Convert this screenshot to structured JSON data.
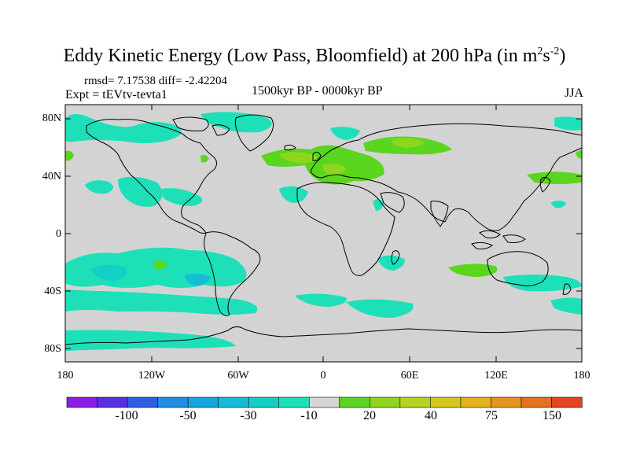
{
  "title": "Eddy Kinetic Energy (Low Pass, Bloomfield) at 200 hPa (in m",
  "title_unit_sup1": "2",
  "title_unit_s": "s",
  "title_unit_sup2": "-2",
  "title_close": ")",
  "stats_line": "rmsd= 7.17538 diff= -2.42204",
  "expt_line": "Expt = tEVtv-tevta1",
  "period_line": "1500kyr BP - 0000kyr BP",
  "season": "JJA",
  "lat_labels": [
    "80N",
    "40N",
    "0",
    "40S",
    "80S"
  ],
  "lon_labels": [
    "180",
    "120W",
    "60W",
    "0",
    "60E",
    "120E",
    "180"
  ],
  "colorbar": {
    "colors": [
      "#8a1ee6",
      "#5a2ee6",
      "#2e5ee6",
      "#1e8ee6",
      "#14a6e0",
      "#14bcd6",
      "#14cfc6",
      "#1ee0b8",
      "#d6d6d6",
      "#5ad61e",
      "#8ed61e",
      "#b4d41e",
      "#d6c81e",
      "#e6b21e",
      "#e6941e",
      "#e6701e",
      "#e6441e"
    ],
    "labels": [
      "-100",
      "-50",
      "-30",
      "-10",
      "20",
      "40",
      "75",
      "150"
    ]
  },
  "fill_colors": {
    "ocean_gray": "#d3d3d3",
    "neg_teal": "#1ee0b8",
    "neg_cyan": "#14cfc6",
    "neg_blue": "#14bcd6",
    "pos_green": "#5ad61e",
    "pos_yellowgreen": "#8ed61e"
  }
}
